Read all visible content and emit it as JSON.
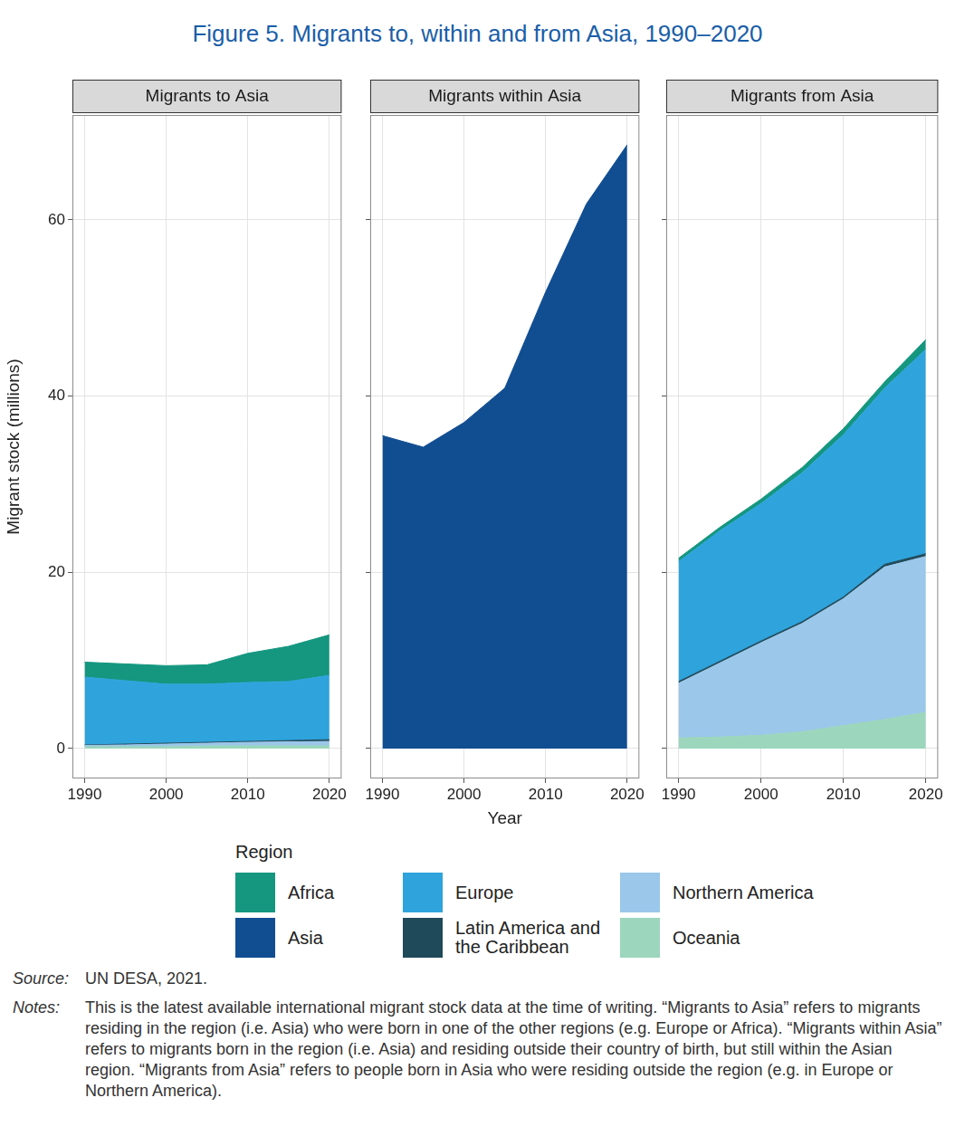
{
  "title": "Figure 5. Migrants to, within and from Asia, 1990–2020",
  "legend_title": "Region",
  "source_label": "Source:",
  "source": "UN DESA, 2021.",
  "notes_label": "Notes:",
  "notes": "This is the latest available international migrant stock data at the time of writing. “Migrants to Asia” refers to migrants residing in the region (i.e. Asia) who were born in one of the other regions (e.g. Europe or Africa). “Migrants within Asia” refers to migrants born in the region (i.e. Asia) and residing outside their country of birth, but still within the Asian region. “Migrants from Asia” refers to people born in Asia who were residing outside the region (e.g. in Europe or Northern America).",
  "chart_data": [
    {
      "type": "area",
      "title": "Migrants to Asia",
      "y_label": "Migrant stock (millions)",
      "x": [
        1990,
        1995,
        2000,
        2005,
        2010,
        2015,
        2020
      ],
      "series": [
        {
          "name": "Oceania",
          "color": "#9bd6bd",
          "values": [
            0.2,
            0.2,
            0.2,
            0.3,
            0.3,
            0.3,
            0.3
          ]
        },
        {
          "name": "Northern America",
          "color": "#9ac7ea",
          "values": [
            0.15,
            0.2,
            0.3,
            0.3,
            0.4,
            0.45,
            0.5
          ]
        },
        {
          "name": "Latin America and the Caribbean",
          "color": "#1f4a5a",
          "values": [
            0.05,
            0.1,
            0.1,
            0.1,
            0.1,
            0.15,
            0.2
          ]
        },
        {
          "name": "Europe",
          "color": "#2ea3dc",
          "values": [
            7.7,
            7.2,
            6.7,
            6.6,
            6.7,
            6.7,
            7.3
          ]
        },
        {
          "name": "Africa",
          "color": "#14967f",
          "values": [
            1.7,
            1.9,
            2.1,
            2.2,
            3.3,
            4.0,
            4.6
          ]
        }
      ],
      "xlim": [
        1988.5,
        2021.5
      ],
      "xticks": [
        1990,
        2000,
        2010,
        2020
      ],
      "ylim": [
        -3.4,
        71.9
      ],
      "yticks": [
        0,
        20,
        40,
        60
      ],
      "stacked": true,
      "grid": true,
      "tick_labels": true
    },
    {
      "type": "area",
      "title": "Migrants within Asia",
      "x_label": "Year",
      "x": [
        1990,
        1995,
        2000,
        2005,
        2010,
        2015,
        2020
      ],
      "series": [
        {
          "name": "Asia",
          "color": "#114d91",
          "values": [
            35.5,
            34.2,
            37.0,
            40.9,
            51.8,
            61.8,
            68.5
          ]
        }
      ],
      "xlim": [
        1988.5,
        2021.5
      ],
      "xticks": [
        1990,
        2000,
        2010,
        2020
      ],
      "ylim": [
        -3.4,
        71.9
      ],
      "yticks": [
        0,
        20,
        40,
        60
      ],
      "stacked": true,
      "grid": true,
      "tick_labels": "x"
    },
    {
      "type": "area",
      "title": "Migrants from Asia",
      "x": [
        1990,
        1995,
        2000,
        2005,
        2010,
        2015,
        2020
      ],
      "series": [
        {
          "name": "Oceania",
          "color": "#9bd6bd",
          "values": [
            1.2,
            1.3,
            1.5,
            1.9,
            2.6,
            3.3,
            4.1
          ]
        },
        {
          "name": "Northern America",
          "color": "#9ac7ea",
          "values": [
            6.2,
            8.4,
            10.5,
            12.3,
            14.4,
            17.3,
            17.7
          ]
        },
        {
          "name": "Latin America and the Caribbean",
          "color": "#1f4a5a",
          "values": [
            0.2,
            0.2,
            0.2,
            0.2,
            0.2,
            0.3,
            0.3
          ]
        },
        {
          "name": "Europe",
          "color": "#2ea3dc",
          "values": [
            13.6,
            14.8,
            15.6,
            16.9,
            18.4,
            20.0,
            23.2
          ]
        },
        {
          "name": "Africa",
          "color": "#14967f",
          "values": [
            0.4,
            0.4,
            0.5,
            0.6,
            0.7,
            0.7,
            1.1
          ]
        }
      ],
      "xlim": [
        1988.5,
        2021.5
      ],
      "xticks": [
        1990,
        2000,
        2010,
        2020
      ],
      "ylim": [
        -3.4,
        71.9
      ],
      "yticks": [
        0,
        20,
        40,
        60
      ],
      "stacked": true,
      "grid": true,
      "tick_labels": "x"
    }
  ]
}
